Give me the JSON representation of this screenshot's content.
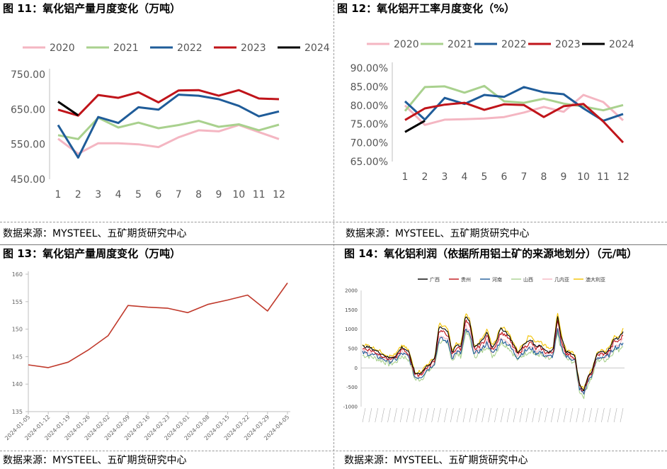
{
  "panels": [
    {
      "id": "p11",
      "title": "图 11：氧化铝产量月度变化（万吨）",
      "source": "数据来源：MYSTEEL、五矿期货研究中心"
    },
    {
      "id": "p12",
      "title": "图 12：氧化铝开工率月度变化（%）",
      "source": "数据来源：MYSTEEL、五矿期货研究中心"
    },
    {
      "id": "p13",
      "title": "图 13：氧化铝产量周度变化（万吨）",
      "source": "数据来源：MYSTEEL、五矿期货研究中心"
    },
    {
      "id": "p14",
      "title": "图 14：氧化铝利润（依据所用铝土矿的来源地划分）（元/吨）",
      "source": "数据来源：MYSTEEL、五矿期货研究中心"
    }
  ],
  "chart_data": [
    {
      "type": "line",
      "legend_position": "top",
      "grid": false,
      "categories": [
        "1",
        "2",
        "3",
        "4",
        "5",
        "6",
        "7",
        "8",
        "9",
        "10",
        "11",
        "12"
      ],
      "ylim": [
        450,
        750
      ],
      "yticks": [
        450,
        550,
        650,
        750
      ],
      "ytick_labels": [
        "450.00",
        "550.00",
        "650.00",
        "750.00"
      ],
      "series": [
        {
          "name": "2020",
          "color": "#f4b6c2",
          "values": [
            566,
            523,
            553,
            553,
            550,
            542,
            570,
            590,
            587,
            605,
            585,
            565
          ]
        },
        {
          "name": "2021",
          "color": "#a9d18e",
          "values": [
            576,
            565,
            626,
            598,
            612,
            596,
            605,
            617,
            600,
            607,
            590,
            606
          ]
        },
        {
          "name": "2022",
          "color": "#1f5c99",
          "values": [
            605,
            512,
            628,
            611,
            656,
            649,
            692,
            689,
            679,
            660,
            630,
            644
          ]
        },
        {
          "name": "2023",
          "color": "#c0141a",
          "values": [
            649,
            632,
            691,
            683,
            699,
            670,
            704,
            705,
            689,
            705,
            681,
            679
          ]
        },
        {
          "name": "2024",
          "color": "#000000",
          "values": [
            672,
            633,
            null,
            null,
            null,
            null,
            null,
            null,
            null,
            null,
            null,
            null
          ]
        }
      ]
    },
    {
      "type": "line",
      "legend_position": "top",
      "grid": false,
      "categories": [
        "1",
        "2",
        "3",
        "4",
        "5",
        "6",
        "7",
        "8",
        "9",
        "10",
        "11",
        "12"
      ],
      "ylim": [
        65,
        90
      ],
      "yticks": [
        65,
        70,
        75,
        80,
        85,
        90
      ],
      "ytick_labels": [
        "65.00%",
        "70.00%",
        "75.00%",
        "80.00%",
        "85.00%",
        "90.00%"
      ],
      "series": [
        {
          "name": "2020",
          "color": "#f4b6c2",
          "values": [
            80.0,
            74.8,
            76.2,
            76.3,
            76.5,
            76.9,
            78.1,
            79.6,
            78.3,
            82.8,
            80.9,
            76.0
          ]
        },
        {
          "name": "2021",
          "color": "#a9d18e",
          "values": [
            78.5,
            84.9,
            85.1,
            83.4,
            85.2,
            81.1,
            80.7,
            81.8,
            80.5,
            79.7,
            78.7,
            80.1
          ]
        },
        {
          "name": "2022",
          "color": "#1f5c99",
          "values": [
            81.1,
            76.2,
            82.0,
            80.4,
            82.8,
            82.3,
            84.9,
            83.5,
            83.0,
            79.2,
            75.9,
            77.7
          ]
        },
        {
          "name": "2023",
          "color": "#c0141a",
          "values": [
            76.1,
            79.2,
            80.2,
            80.7,
            78.8,
            80.3,
            80.1,
            76.9,
            79.8,
            80.4,
            75.7,
            70.1
          ]
        },
        {
          "name": "2024",
          "color": "#000000",
          "values": [
            72.9,
            75.9,
            null,
            null,
            null,
            null,
            null,
            null,
            null,
            null,
            null,
            null
          ]
        }
      ]
    },
    {
      "type": "line",
      "grid": false,
      "categories": [
        "2024-01-05",
        "2024-01-12",
        "2024-01-19",
        "2024-01-26",
        "2024-02-02",
        "2024-02-09",
        "2024-02-16",
        "2024-02-23",
        "2024-03-01",
        "2024-03-08",
        "2024-03-15",
        "2024-03-22",
        "2024-03-29",
        "2024-04-05"
      ],
      "ylim": [
        135,
        160
      ],
      "yticks": [
        135,
        140,
        145,
        150,
        155,
        160
      ],
      "series": [
        {
          "color": "#c0392b",
          "values": [
            143.5,
            143.0,
            144.0,
            146.2,
            148.8,
            154.3,
            154.0,
            153.8,
            153.0,
            154.5,
            155.3,
            156.2,
            153.3,
            158.4
          ]
        }
      ]
    },
    {
      "type": "line",
      "legend_position": "top",
      "grid": false,
      "ylim": [
        -1000,
        2000
      ],
      "yticks": [
        -1000,
        -500,
        0,
        500,
        1000,
        1500,
        2000
      ],
      "series": [
        {
          "name": "广西",
          "color": "#000000"
        },
        {
          "name": "贵州",
          "color": "#c0141a"
        },
        {
          "name": "河南",
          "color": "#1f5c99"
        },
        {
          "name": "山西",
          "color": "#a9d18e"
        },
        {
          "name": "几内亚",
          "color": "#f4b6c2"
        },
        {
          "name": "澳大利亚",
          "color": "#f2c200"
        }
      ],
      "keypoints": [
        [
          0,
          560
        ],
        [
          3,
          530
        ],
        [
          6,
          450
        ],
        [
          9,
          360
        ],
        [
          12,
          260
        ],
        [
          15,
          300
        ],
        [
          18,
          540
        ],
        [
          21,
          420
        ],
        [
          24,
          -150
        ],
        [
          27,
          -120
        ],
        [
          29,
          30
        ],
        [
          31,
          120
        ],
        [
          33,
          240
        ],
        [
          35,
          1080
        ],
        [
          37,
          1020
        ],
        [
          39,
          950
        ],
        [
          41,
          380
        ],
        [
          43,
          600
        ],
        [
          45,
          540
        ],
        [
          47,
          1350
        ],
        [
          49,
          1200
        ],
        [
          51,
          520
        ],
        [
          53,
          610
        ],
        [
          55,
          730
        ],
        [
          57,
          940
        ],
        [
          59,
          520
        ],
        [
          61,
          680
        ],
        [
          63,
          1010
        ],
        [
          65,
          960
        ],
        [
          67,
          820
        ],
        [
          69,
          600
        ],
        [
          71,
          380
        ],
        [
          73,
          560
        ],
        [
          75,
          660
        ],
        [
          77,
          740
        ],
        [
          79,
          550
        ],
        [
          81,
          600
        ],
        [
          83,
          480
        ],
        [
          85,
          420
        ],
        [
          87,
          460
        ],
        [
          89,
          1350
        ],
        [
          91,
          740
        ],
        [
          93,
          420
        ],
        [
          95,
          380
        ],
        [
          97,
          300
        ],
        [
          99,
          -420
        ],
        [
          101,
          -580
        ],
        [
          103,
          -240
        ],
        [
          105,
          -60
        ],
        [
          107,
          360
        ],
        [
          109,
          420
        ],
        [
          111,
          400
        ],
        [
          113,
          510
        ],
        [
          115,
          770
        ],
        [
          117,
          760
        ],
        [
          119,
          950
        ]
      ],
      "offsets": [
        {
          "base": [
            0,
            0
          ],
          "noise": 30
        },
        {
          "base": [
            -40,
            -120
          ],
          "noise": 45
        },
        {
          "base": [
            -100,
            -350
          ],
          "noise": 60
        },
        {
          "base": [
            -160,
            -420
          ],
          "noise": 70
        },
        {
          "base": [
            -80,
            -250
          ],
          "noise": 55
        },
        {
          "base": [
            40,
            60
          ],
          "noise": 40
        }
      ],
      "ngroups": 8,
      "group_size": 40
    }
  ]
}
